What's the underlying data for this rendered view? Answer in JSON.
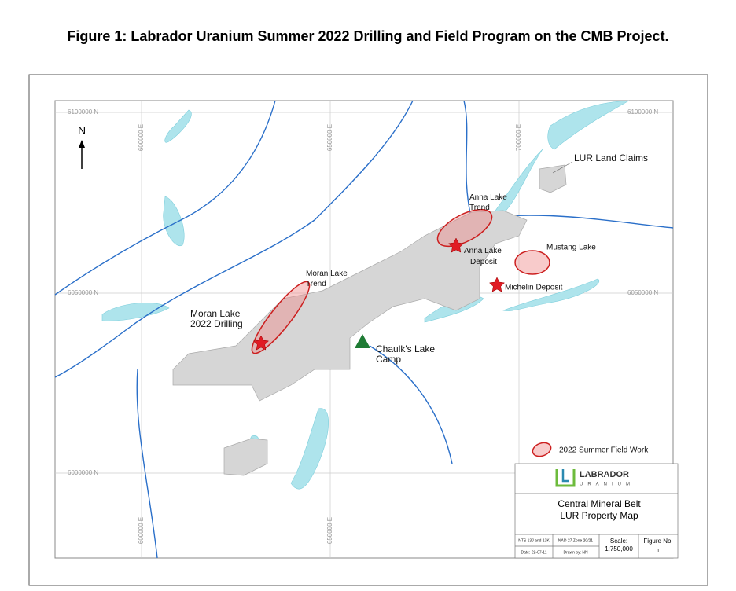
{
  "title": "Figure 1: Labrador Uranium Summer 2022 Drilling and Field Program on the CMB Project.",
  "map": {
    "northings": [
      "6100000 N",
      "6050000 N",
      "6000000 N"
    ],
    "eastings": [
      "600000 E",
      "650000 E",
      "700000 E"
    ],
    "north_arrow": "N",
    "labels": {
      "land_claims": "LUR Land Claims",
      "anna_trend": [
        "Anna Lake",
        "Trend"
      ],
      "anna_deposit": [
        "Anna Lake",
        "Deposit"
      ],
      "mustang": "Mustang Lake",
      "michelin": "Michelin Deposit",
      "moran_trend": [
        "Moran Lake",
        "Trend"
      ],
      "moran_drilling": [
        "Moran Lake",
        "2022 Drilling"
      ],
      "camp": [
        "Chaulk's Lake",
        "Camp"
      ]
    },
    "legend": "2022 Summer  Field Work"
  },
  "title_block": {
    "logo": [
      "LABRADOR",
      "URANIUM"
    ],
    "map_title": [
      "Central Mineral Belt",
      "LUR Property Map"
    ],
    "nts": "NTS 13J and 13K",
    "datum": "NAD 27 Zone 20/21",
    "scale_label": "Scale:",
    "scale": "1:750,000",
    "figure_label": "Figure No:",
    "figure": "1",
    "date": "Date: 22-07-11",
    "drawn": "Drawn by: NN"
  }
}
